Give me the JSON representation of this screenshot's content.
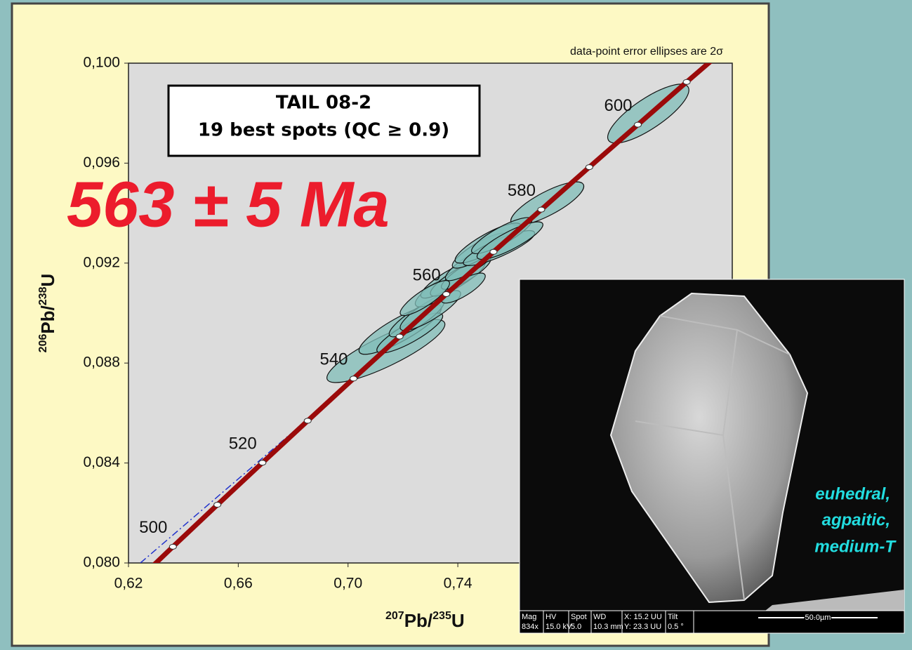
{
  "chart_data": {
    "type": "concordia",
    "annotation": "data-point error ellipses are 2σ",
    "title_box": [
      "TAIL 08-2",
      "19 best spots (QC  ≥ 0.9)"
    ],
    "age_result": "563 ± 5 Ma",
    "xlabel_parts": [
      "207",
      "Pb/",
      "235",
      "U"
    ],
    "ylabel_parts": [
      "206",
      "Pb/",
      "238",
      "U"
    ],
    "xlim": [
      0.62,
      0.84
    ],
    "ylim": [
      0.08,
      0.1
    ],
    "xticks": [
      {
        "value": 0.62,
        "label": "0,62"
      },
      {
        "value": 0.66,
        "label": "0,66"
      },
      {
        "value": 0.7,
        "label": "0,70"
      },
      {
        "value": 0.74,
        "label": "0,74"
      }
    ],
    "yticks": [
      {
        "value": 0.08,
        "label": "0,080"
      },
      {
        "value": 0.084,
        "label": "0,084"
      },
      {
        "value": 0.088,
        "label": "0,088"
      },
      {
        "value": 0.092,
        "label": "0,092"
      },
      {
        "value": 0.096,
        "label": "0,096"
      },
      {
        "value": 0.1,
        "label": "0,100"
      }
    ],
    "concordia": {
      "color": "#9b0a0a",
      "ages": [
        490,
        500,
        510,
        520,
        530,
        540,
        550,
        560,
        570,
        580,
        590,
        600,
        610,
        620
      ],
      "x": [
        0.6202,
        0.6362,
        0.6524,
        0.6688,
        0.6853,
        0.702,
        0.7188,
        0.7358,
        0.753,
        0.7704,
        0.7879,
        0.8056,
        0.8234,
        0.8415
      ],
      "y": [
        0.07897,
        0.08065,
        0.08233,
        0.08401,
        0.08569,
        0.08738,
        0.08906,
        0.09076,
        0.09245,
        0.09414,
        0.09584,
        0.09754,
        0.09925,
        0.10096
      ]
    },
    "age_labels": [
      500,
      520,
      540,
      560,
      580,
      600
    ],
    "ellipses": {
      "color": "#80bdb8",
      "x": [
        0.8094,
        0.7726,
        0.7138,
        0.719,
        0.7225,
        0.725,
        0.73,
        0.733,
        0.736,
        0.74,
        0.743,
        0.745,
        0.748,
        0.751,
        0.755,
        0.756,
        0.759,
        0.742,
        0.728
      ],
      "y": [
        0.09798,
        0.09438,
        0.08848,
        0.08935,
        0.0892,
        0.0898,
        0.0901,
        0.0909,
        0.0913,
        0.0914,
        0.0916,
        0.092,
        0.0925,
        0.0928,
        0.0926,
        0.0931,
        0.0929,
        0.091,
        0.0906
      ],
      "x_err": [
        0.0148,
        0.0133,
        0.0215,
        0.015,
        0.012,
        0.01,
        0.011,
        0.0085,
        0.0095,
        0.01,
        0.009,
        0.0095,
        0.01,
        0.012,
        0.013,
        0.011,
        0.012,
        0.008,
        0.009
      ],
      "y_err": [
        0.00118,
        0.00087,
        0.00126,
        0.001,
        0.0008,
        0.00075,
        0.0008,
        0.00065,
        0.0007,
        0.00072,
        0.00065,
        0.0007,
        0.0007,
        0.0008,
        0.0007,
        0.00072,
        0.00075,
        0.0006,
        0.0007
      ],
      "rho": [
        0.8,
        0.8,
        0.85,
        0.85,
        0.85,
        0.85,
        0.85,
        0.8,
        0.85,
        0.85,
        0.85,
        0.85,
        0.85,
        0.85,
        0.85,
        0.85,
        0.85,
        0.8,
        0.85
      ]
    }
  },
  "inset": {
    "caption": [
      "euhedral,",
      "agpaitic,",
      "medium-T"
    ],
    "info_bar": [
      [
        "Mag",
        "834x"
      ],
      [
        "HV",
        "15.0 kV"
      ],
      [
        "Spot",
        "5.0"
      ],
      [
        "WD",
        "10.3 mm"
      ],
      [
        "X: 15.2 UU",
        "Y: 23.3 UU"
      ],
      [
        "Tilt",
        "0.5 °"
      ]
    ],
    "scale_bar": "50.0µm"
  }
}
